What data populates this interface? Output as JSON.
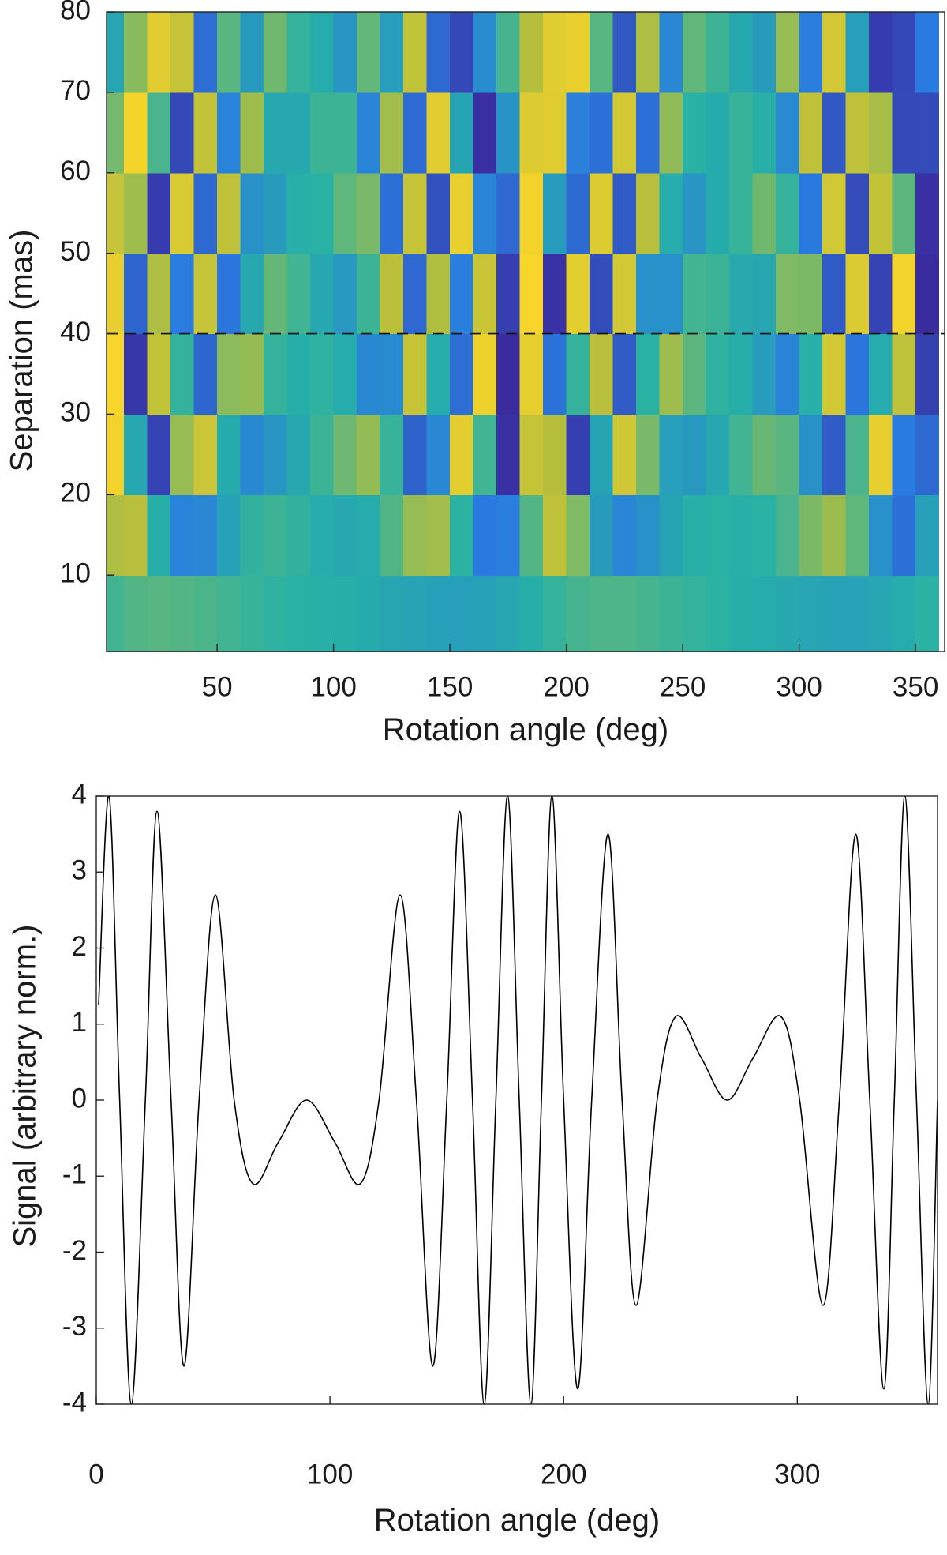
{
  "chart_data": [
    {
      "type": "heatmap",
      "xlabel": "Rotation angle (deg)",
      "ylabel": "Separation (mas)",
      "x": [
        5,
        15,
        25,
        35,
        45,
        55,
        65,
        75,
        85,
        95,
        105,
        115,
        125,
        135,
        145,
        155,
        165,
        175,
        185,
        195,
        205,
        215,
        225,
        235,
        245,
        255,
        265,
        275,
        285,
        295,
        305,
        315,
        325,
        335,
        345,
        355
      ],
      "y": [
        5,
        15,
        25,
        35,
        45,
        55,
        65,
        75
      ],
      "z": [
        [
          0.1,
          0.15,
          0.17,
          0.16,
          0.13,
          0.1,
          0.06,
          0.03,
          0.01,
          -0.01,
          -0.03,
          -0.06,
          -0.1,
          -0.13,
          -0.16,
          -0.17,
          -0.15,
          -0.1,
          -0.02,
          0.05,
          0.11,
          0.14,
          0.14,
          0.11,
          0.08,
          0.05,
          0.02,
          -0.02,
          -0.05,
          -0.08,
          -0.11,
          -0.14,
          -0.14,
          -0.11,
          -0.05,
          0.02
        ],
        [
          0.47,
          0.51,
          -0.02,
          -0.43,
          -0.39,
          -0.15,
          0.04,
          0.08,
          0.04,
          -0.04,
          -0.08,
          -0.04,
          0.15,
          0.39,
          0.43,
          0.02,
          -0.51,
          -0.47,
          0.16,
          0.57,
          0.31,
          -0.2,
          -0.41,
          -0.3,
          -0.12,
          -0.01,
          0.01,
          -0.01,
          0.01,
          0.12,
          0.3,
          0.41,
          0.2,
          -0.31,
          -0.57,
          -0.16
        ],
        [
          0.96,
          -0.09,
          -0.85,
          0.39,
          0.65,
          -0.06,
          -0.38,
          -0.25,
          -0.08,
          0.08,
          0.25,
          0.38,
          0.06,
          -0.65,
          -0.39,
          0.85,
          0.09,
          -0.96,
          0.61,
          0.5,
          -0.87,
          -0.12,
          0.69,
          0.29,
          -0.18,
          -0.23,
          -0.09,
          0.09,
          0.23,
          0.18,
          -0.29,
          -0.69,
          0.12,
          0.87,
          -0.5,
          -0.61
        ],
        [
          0.99,
          -0.92,
          0.58,
          0.05,
          -0.63,
          0.35,
          0.38,
          0.05,
          -0.03,
          0.03,
          -0.05,
          -0.38,
          -0.35,
          0.63,
          -0.05,
          -0.58,
          0.92,
          -0.99,
          0.86,
          -0.56,
          0.05,
          0.53,
          -0.7,
          0.01,
          0.42,
          0.19,
          0.03,
          -0.03,
          -0.19,
          -0.42,
          -0.01,
          0.7,
          -0.53,
          -0.05,
          0.56,
          -0.86
        ],
        [
          0.87,
          -0.64,
          0.47,
          -0.48,
          0.62,
          -0.53,
          -0.08,
          0.22,
          0.09,
          -0.09,
          -0.22,
          0.08,
          0.53,
          -0.62,
          0.48,
          -0.47,
          0.64,
          -0.87,
          0.99,
          -0.95,
          0.84,
          -0.78,
          0.7,
          -0.3,
          -0.31,
          0.1,
          0.07,
          -0.07,
          -0.1,
          0.31,
          0.3,
          -0.7,
          0.78,
          -0.84,
          0.95,
          -0.99
        ],
        [
          0.62,
          0.42,
          -0.89,
          0.76,
          -0.61,
          0.57,
          -0.29,
          -0.2,
          -0.01,
          0.01,
          0.2,
          0.29,
          -0.57,
          0.61,
          -0.76,
          0.89,
          -0.42,
          -0.62,
          0.96,
          -0.19,
          -0.6,
          0.79,
          -0.7,
          0.51,
          -0.05,
          -0.26,
          -0.06,
          0.06,
          0.26,
          0.05,
          -0.51,
          0.7,
          -0.79,
          0.6,
          0.19,
          -0.96
        ],
        [
          0.27,
          0.97,
          0.12,
          -0.81,
          0.59,
          -0.43,
          0.42,
          -0.08,
          -0.08,
          0.08,
          0.08,
          -0.42,
          0.43,
          -0.59,
          0.81,
          -0.12,
          -0.97,
          -0.27,
          0.79,
          0.8,
          -0.45,
          -0.57,
          0.71,
          -0.57,
          0.37,
          0.01,
          -0.06,
          0.06,
          -0.01,
          -0.37,
          0.57,
          -0.71,
          0.57,
          0.45,
          -0.8,
          -0.79
        ],
        [
          -0.11,
          0.34,
          0.81,
          0.61,
          -0.58,
          0.18,
          -0.21,
          0.26,
          0.05,
          -0.05,
          -0.26,
          0.21,
          -0.18,
          0.58,
          -0.61,
          -0.81,
          -0.34,
          0.11,
          0.5,
          0.81,
          0.89,
          0.17,
          -0.71,
          0.47,
          -0.39,
          0.2,
          0.08,
          -0.08,
          -0.2,
          0.39,
          -0.47,
          0.71,
          -0.17,
          -0.89,
          -0.81,
          -0.5
        ]
      ],
      "zlim": [
        -1,
        1
      ],
      "colormap": [
        "#3a2a9e",
        "#2a7be0",
        "#26b1a6",
        "#b6bf3c",
        "#f8d52a"
      ],
      "xlim": [
        2.5,
        362.5
      ],
      "ylim": [
        0.5,
        80
      ],
      "xticks": [
        50,
        100,
        150,
        200,
        250,
        300,
        350
      ],
      "yticks": [
        10,
        20,
        30,
        40,
        50,
        60,
        70,
        80
      ],
      "hline": 40
    },
    {
      "type": "line",
      "xlabel": "Rotation angle (deg)",
      "ylabel": "Signal (arbitrary norm.)",
      "x": [
        1,
        5.5,
        10,
        15,
        21,
        26,
        32,
        37.5,
        44,
        51,
        59,
        67,
        78,
        90,
        102,
        113,
        121,
        130,
        137,
        144,
        150,
        155.5,
        161,
        166,
        171,
        176,
        181,
        186,
        190.5,
        195,
        200,
        206,
        212,
        219,
        225,
        231,
        240,
        248,
        259,
        270,
        281,
        293,
        301,
        311,
        318,
        325,
        331,
        337,
        341.5,
        346,
        351,
        356,
        360
      ],
      "values": [
        1.25,
        4,
        0,
        -4,
        0,
        3.8,
        0,
        -3.5,
        0,
        2.7,
        0,
        -1.1,
        -0.55,
        0,
        -0.55,
        -1.1,
        0,
        2.7,
        0,
        -3.5,
        0,
        3.8,
        0,
        -4,
        0,
        4,
        0,
        -4,
        0,
        4,
        0,
        -3.8,
        0,
        3.5,
        0,
        -2.7,
        0,
        1.1,
        0.55,
        0,
        0.55,
        1.1,
        0,
        -2.7,
        0,
        3.5,
        0,
        -3.8,
        0,
        4,
        0,
        -4,
        0
      ],
      "color": "#000000",
      "xlim": [
        0,
        360
      ],
      "ylim": [
        -4,
        4
      ],
      "xticks": [
        0,
        100,
        200,
        300
      ],
      "yticks": [
        -4,
        -3,
        -2,
        -1,
        0,
        1,
        2,
        3,
        4
      ]
    }
  ]
}
